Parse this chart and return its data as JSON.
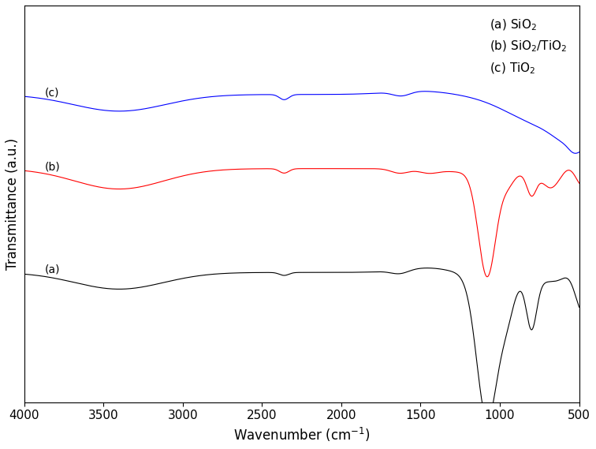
{
  "ylabel": "Transmittance (a.u.)",
  "colors": [
    "black",
    "red",
    "blue"
  ],
  "legend_labels": [
    "(a) SiO$_2$",
    "(b) SiO$_2$/TiO$_2$",
    "(c) TiO$_2$"
  ],
  "xlabel_fontsize": 12,
  "ylabel_fontsize": 12,
  "tick_fontsize": 11,
  "legend_fontsize": 11,
  "xticks": [
    4000,
    3500,
    3000,
    2500,
    2000,
    1500,
    1000,
    500
  ],
  "xlim": [
    4000,
    500
  ],
  "curve_a_base": 0.3,
  "curve_b_base": 0.58,
  "curve_c_base": 0.78
}
